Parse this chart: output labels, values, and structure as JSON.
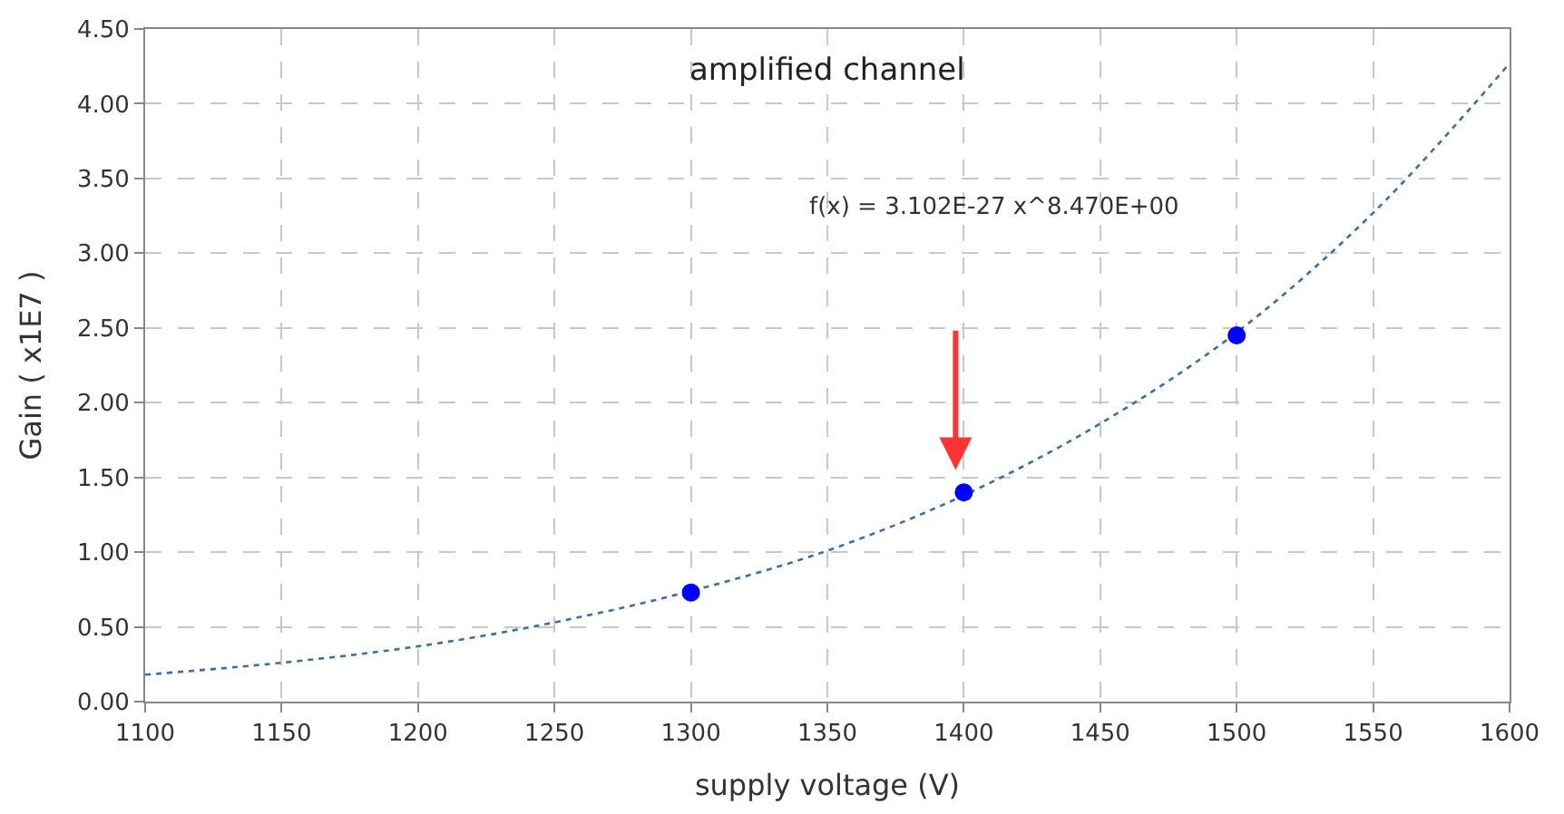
{
  "chart_data": {
    "type": "scatter",
    "title": "amplified channel",
    "xlabel": "supply voltage (V)",
    "ylabel": "Gain ( x1E7 )",
    "annotations": [
      "f(x) = 3.102E-27 x^8.470E+00"
    ],
    "series": [
      {
        "type": "line",
        "color": "#3a6ea5",
        "line_style": "dotted",
        "marker": "none",
        "x": [
          1100,
          1150,
          1200,
          1250,
          1300,
          1350,
          1400,
          1450,
          1500,
          1550,
          1600
        ],
        "values": [
          0.18,
          0.26,
          0.37,
          0.53,
          0.74,
          1.01,
          1.38,
          1.86,
          2.47,
          3.27,
          4.27
        ]
      },
      {
        "color": "#0000ff",
        "marker": "circle",
        "x": [
          1300,
          1400,
          1500
        ],
        "values": [
          0.73,
          1.4,
          2.45
        ]
      }
    ],
    "xlim": [
      1100,
      1600
    ],
    "xticks": [
      1100,
      1150,
      1200,
      1250,
      1300,
      1350,
      1400,
      1450,
      1500,
      1550,
      1600
    ],
    "ylim": [
      0,
      4.5
    ],
    "yticks": [
      {
        "value": 0,
        "label": "0.00"
      },
      {
        "value": 0.5,
        "label": "0.50"
      },
      {
        "value": 1,
        "label": "1.00"
      },
      {
        "value": 1.5,
        "label": "1.50"
      },
      {
        "value": 2,
        "label": "2.00"
      },
      {
        "value": 2.5,
        "label": "2.50"
      },
      {
        "value": 3,
        "label": "3.00"
      },
      {
        "value": 3.5,
        "label": "3.50"
      },
      {
        "value": 4,
        "label": "4.00"
      },
      {
        "value": 4.5,
        "label": "4.50"
      }
    ],
    "grid": true
  }
}
